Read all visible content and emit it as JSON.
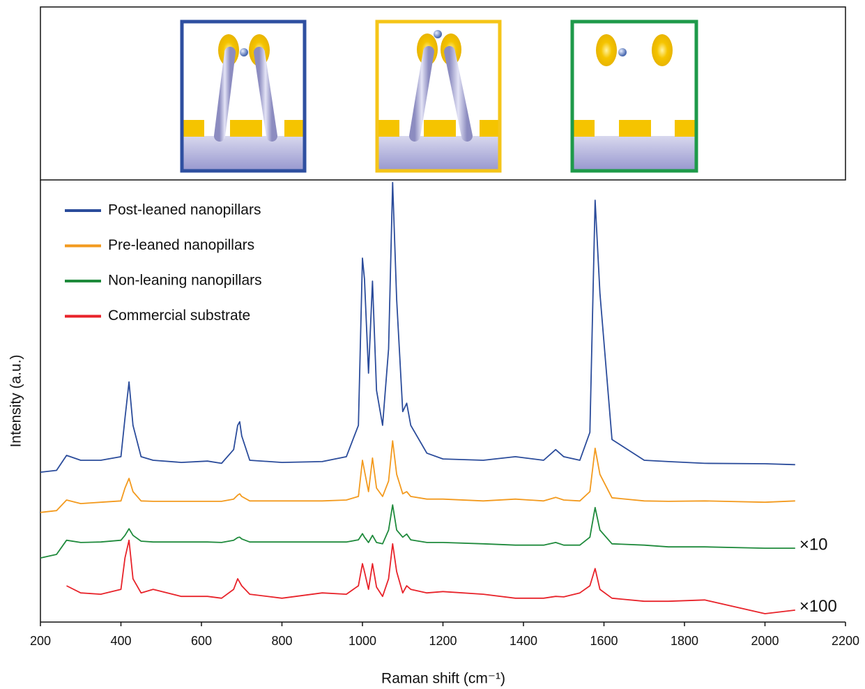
{
  "chart_data": {
    "type": "line",
    "xlabel": "Raman shift (cm⁻¹)",
    "ylabel": "Intensity (a.u.)",
    "xlim": [
      200,
      2200
    ],
    "xticks": [
      200,
      400,
      600,
      800,
      1000,
      1200,
      1400,
      1600,
      1800,
      2000,
      2200
    ],
    "ylim": [
      0,
      100
    ],
    "legend": "upper left",
    "annotations": [
      "×10",
      "×100"
    ],
    "x": [
      200,
      240,
      265,
      300,
      350,
      400,
      410,
      420,
      430,
      450,
      480,
      550,
      615,
      650,
      680,
      690,
      695,
      700,
      720,
      800,
      900,
      960,
      990,
      1000,
      1005,
      1015,
      1025,
      1035,
      1050,
      1065,
      1075,
      1085,
      1100,
      1110,
      1120,
      1160,
      1200,
      1300,
      1380,
      1450,
      1480,
      1500,
      1540,
      1565,
      1578,
      1590,
      1620,
      1700,
      1760,
      1850,
      2000,
      2075
    ],
    "series": [
      {
        "name": "Post-leaned nanopillars",
        "color": "#2b4c9b",
        "values": [
          33.9,
          34.3,
          37.7,
          36.6,
          36.6,
          37.4,
          46.1,
          54.3,
          44.5,
          37.4,
          36.6,
          36.1,
          36.4,
          35.9,
          39.0,
          44.5,
          45.3,
          42.1,
          36.6,
          36.1,
          36.3,
          37.4,
          44.5,
          82.3,
          77.6,
          56.3,
          77.1,
          52.4,
          44.5,
          61.8,
          99.4,
          72.9,
          47.6,
          49.5,
          44.5,
          38.2,
          36.9,
          36.6,
          37.4,
          36.6,
          39.0,
          37.4,
          36.6,
          42.9,
          95.4,
          74.4,
          41.3,
          36.6,
          36.3,
          35.9,
          35.8,
          35.6
        ]
      },
      {
        "name": "Pre-leaned nanopillars",
        "color": "#f39a1e",
        "values": [
          24.8,
          25.2,
          27.6,
          26.8,
          27.1,
          27.4,
          30.3,
          32.5,
          29.5,
          27.4,
          27.3,
          27.3,
          27.3,
          27.3,
          27.8,
          28.7,
          29.0,
          28.4,
          27.4,
          27.4,
          27.4,
          27.6,
          28.4,
          36.6,
          34.2,
          29.5,
          37.1,
          30.3,
          28.4,
          31.9,
          41.0,
          33.4,
          29.0,
          29.5,
          28.4,
          27.8,
          27.8,
          27.4,
          27.8,
          27.4,
          28.2,
          27.6,
          27.4,
          29.5,
          39.3,
          33.4,
          28.1,
          27.4,
          27.3,
          27.4,
          27.1,
          27.4
        ]
      },
      {
        "name": "Non-leaning nanopillars",
        "color": "#1f8a3c",
        "values": [
          14.5,
          15.3,
          18.5,
          18.0,
          18.1,
          18.5,
          19.6,
          21.1,
          19.6,
          18.3,
          18.1,
          18.1,
          18.1,
          18.0,
          18.5,
          19.1,
          19.2,
          18.8,
          18.1,
          18.1,
          18.1,
          18.1,
          18.6,
          20.0,
          19.2,
          18.0,
          19.6,
          18.0,
          17.7,
          20.8,
          26.5,
          20.8,
          19.2,
          19.9,
          18.6,
          18.0,
          18.0,
          17.7,
          17.4,
          17.4,
          18.0,
          17.4,
          17.4,
          19.2,
          25.9,
          20.8,
          17.7,
          17.4,
          17.0,
          17.0,
          16.7,
          16.7
        ]
      },
      {
        "name": "Commercial substrate",
        "color": "#e8232a",
        "values": [
          null,
          null,
          8.2,
          6.6,
          6.3,
          7.4,
          14.5,
          18.5,
          9.8,
          6.6,
          7.4,
          5.8,
          5.8,
          5.4,
          7.4,
          9.8,
          9.0,
          8.2,
          6.3,
          5.4,
          6.6,
          6.3,
          8.2,
          13.2,
          11.4,
          7.4,
          13.2,
          7.9,
          5.8,
          9.8,
          17.7,
          11.4,
          6.6,
          8.2,
          7.4,
          6.6,
          6.9,
          6.3,
          5.4,
          5.4,
          5.8,
          5.7,
          6.6,
          8.2,
          12.1,
          7.4,
          5.4,
          4.7,
          4.7,
          5.0,
          1.9,
          2.7
        ]
      }
    ]
  }
}
